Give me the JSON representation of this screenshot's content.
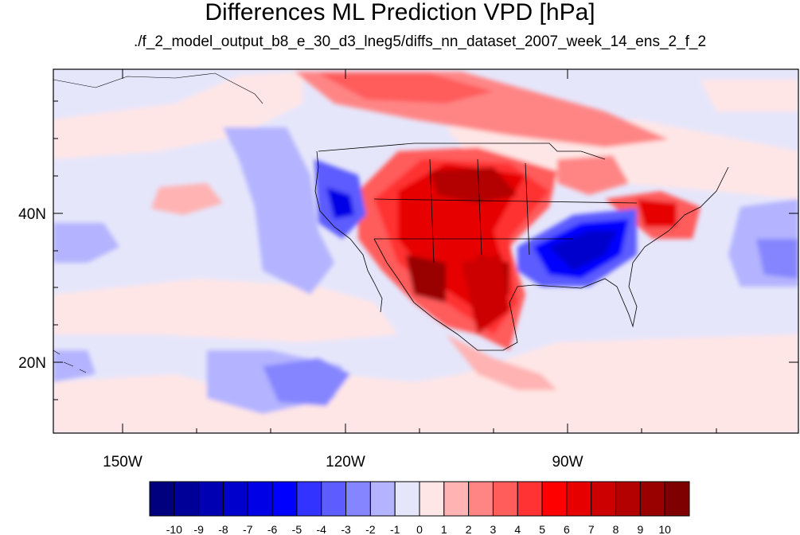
{
  "title": "Differences ML Prediction VPD [hPa]",
  "subtitle": "./f_2_model_output_b8_e_30_d3_lneg5/diffs_nn_dataset_2007_week_14_ens_2_f_2",
  "axes": {
    "lon_labels": [
      "150W",
      "120W",
      "90W"
    ],
    "lat_labels": [
      "40N",
      "20N"
    ]
  },
  "colorbar": {
    "labels": [
      "-10",
      "-9",
      "-8",
      "-7",
      "-6",
      "-5",
      "-4",
      "-3",
      "-2",
      "-1",
      "0",
      "1",
      "2",
      "3",
      "4",
      "5",
      "6",
      "7",
      "8",
      "9",
      "10"
    ],
    "colors": [
      "#00007f",
      "#000099",
      "#0000b3",
      "#0000cc",
      "#0000e6",
      "#0000ff",
      "#3333ff",
      "#5c5cff",
      "#8585ff",
      "#b3b3ff",
      "#e6e6fb",
      "#ffe6e6",
      "#ffb3b3",
      "#ff8585",
      "#ff5c5c",
      "#ff3333",
      "#ff0000",
      "#e60000",
      "#cc0000",
      "#b30000",
      "#990000",
      "#7f0000"
    ]
  }
}
